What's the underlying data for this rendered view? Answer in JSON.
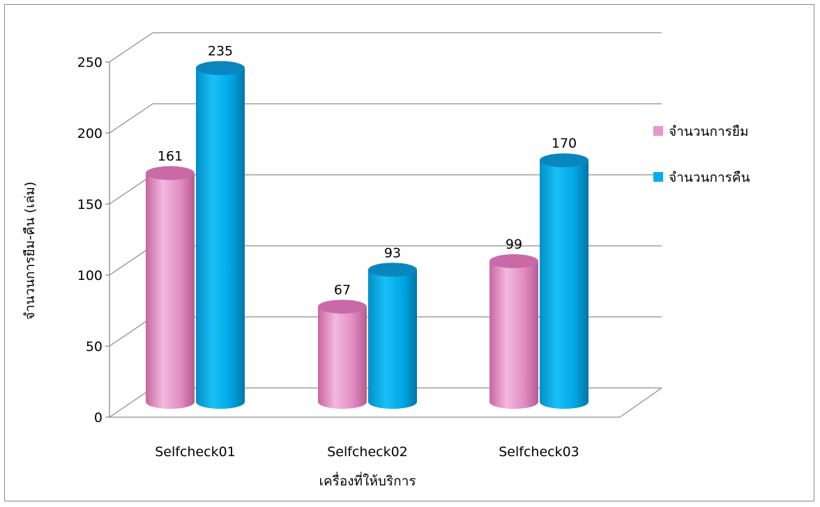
{
  "chart_data": {
    "type": "bar",
    "style": "3d-cylinder",
    "categories": [
      "Selfcheck01",
      "Selfcheck02",
      "Selfcheck03"
    ],
    "series": [
      {
        "name": "จำนวนการยืม",
        "values": [
          161,
          67,
          99
        ],
        "color": "#E996CC"
      },
      {
        "name": "จำนวนการคืน",
        "values": [
          235,
          93,
          170
        ],
        "color": "#00AEEF"
      }
    ],
    "title": "",
    "xlabel": "เครื่องที่ให้บริการ",
    "ylabel": "จำนวนการยืม-คืน (เล่ม)",
    "ylim": [
      0,
      250
    ],
    "yticks": [
      0,
      50,
      100,
      150,
      200,
      250
    ],
    "grid": true,
    "legend_position": "right",
    "data_labels": true
  }
}
